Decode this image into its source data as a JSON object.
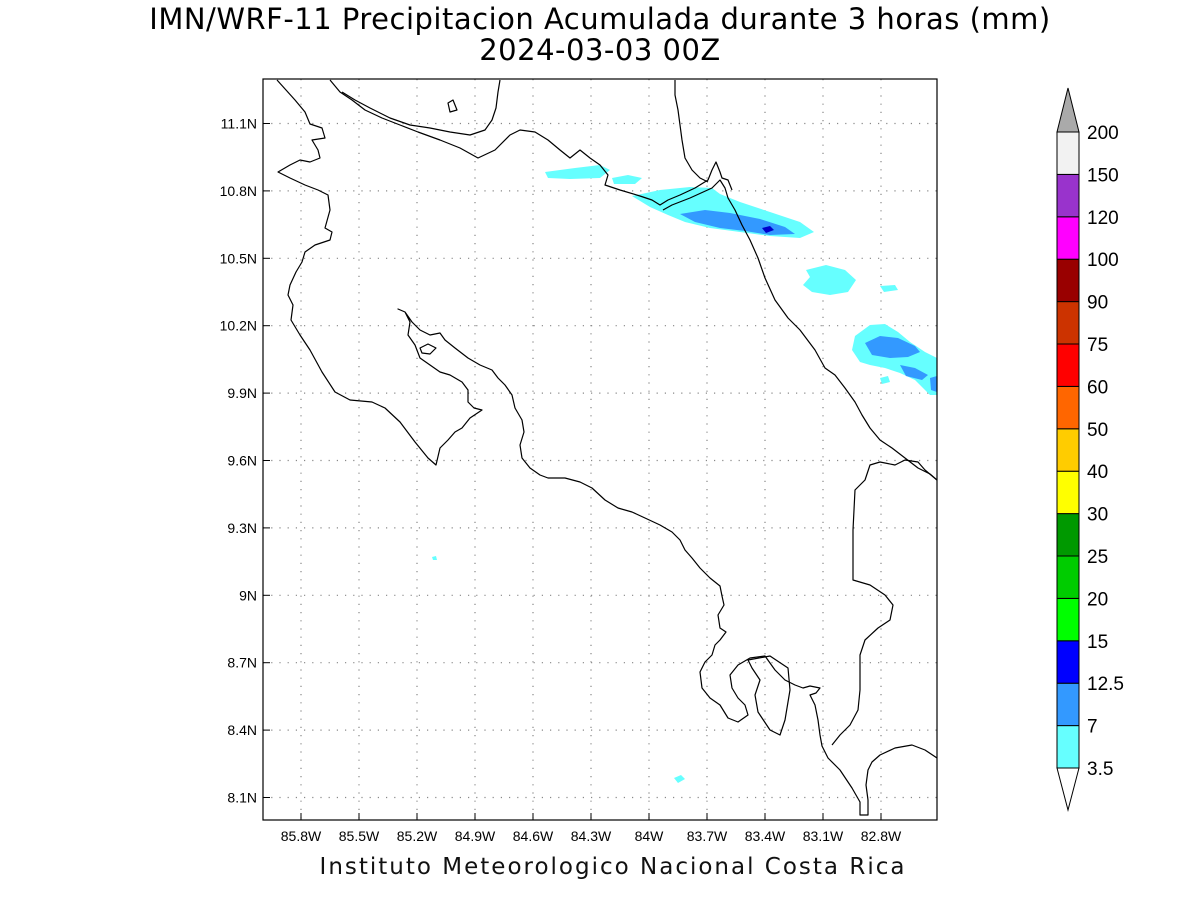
{
  "title": {
    "line1": "IMN/WRF-11 Precipitacion Acumulada durante 3 horas (mm)",
    "line2": "2024-03-03 00Z"
  },
  "footer": "Instituto Meteorologico Nacional Costa Rica",
  "axes": {
    "lon_ticks": [
      "85.8W",
      "85.5W",
      "85.2W",
      "84.9W",
      "84.6W",
      "84.3W",
      "84W",
      "83.7W",
      "83.4W",
      "83.1W",
      "82.8W"
    ],
    "lat_ticks": [
      "11.1N",
      "10.8N",
      "10.5N",
      "10.2N",
      "9.9N",
      "9.6N",
      "9.3N",
      "9N",
      "8.7N",
      "8.4N",
      "8.1N"
    ],
    "grid": true
  },
  "colorbar": {
    "labels": [
      "3.5",
      "7",
      "12.5",
      "15",
      "20",
      "25",
      "30",
      "40",
      "50",
      "60",
      "75",
      "90",
      "100",
      "120",
      "150",
      "200"
    ],
    "colors": [
      "#66ffff",
      "#3399ff",
      "#0000ff",
      "#00ff00",
      "#00cc00",
      "#009900",
      "#ffff00",
      "#ffcc00",
      "#ff6600",
      "#ff0000",
      "#cc3300",
      "#990000",
      "#ff00ff",
      "#9933cc",
      "#f2f2f2"
    ],
    "over_color": "#aaaaaa"
  },
  "precip_colors": {
    "light": "#66ffff",
    "moderate": "#3399ff",
    "heavy": "#0000cc"
  }
}
